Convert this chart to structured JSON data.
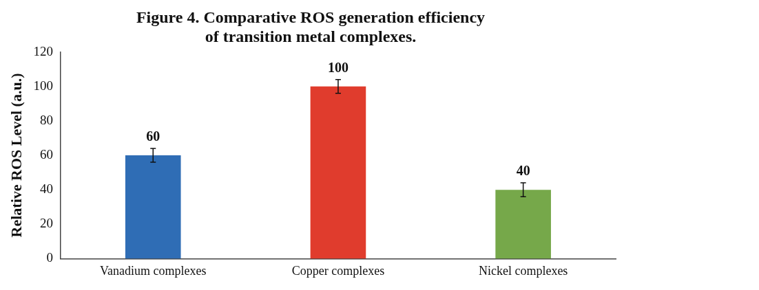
{
  "chart_data": {
    "type": "bar",
    "title": [
      "Figure 4. Comparative ROS generation efficiency",
      "of transition metal complexes."
    ],
    "ylabel": "Relative ROS Level (a.u.)",
    "categories": [
      "Vanadium complexes",
      "Copper complexes",
      "Nickel complexes"
    ],
    "values": [
      60,
      100,
      40
    ],
    "colors": [
      "#2f6db5",
      "#e03c2d",
      "#76a84a"
    ],
    "errors": [
      4,
      4,
      4
    ],
    "ylim": [
      0,
      120
    ],
    "yticks": [
      0,
      20,
      40,
      60,
      80,
      100,
      120
    ],
    "grid": false,
    "legend": false,
    "data_labels": true
  }
}
